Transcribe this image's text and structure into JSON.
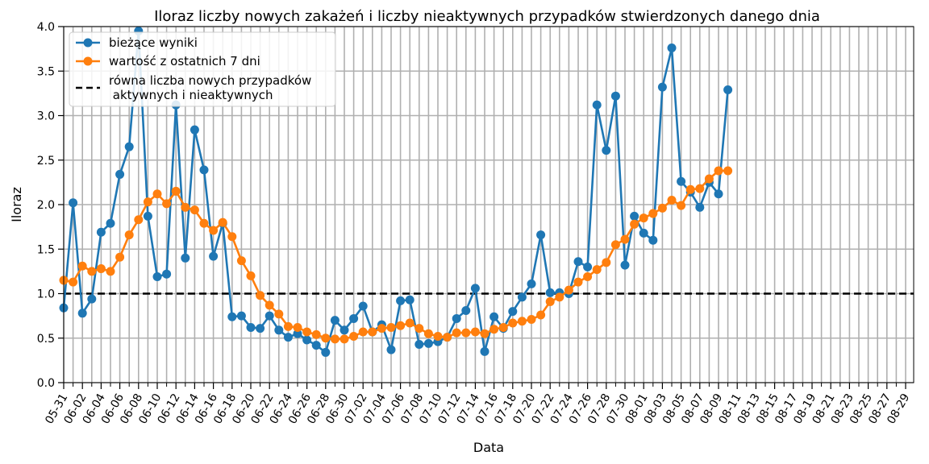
{
  "chart_data": {
    "type": "line",
    "title": "Iloraz liczby nowych zakażeń i liczby nieaktywnych przypadków stwierdzonych danego dnia",
    "xlabel": "Data",
    "ylabel": "Iloraz",
    "ylim": [
      0,
      4
    ],
    "y_ticks": [
      "0.0",
      "0.5",
      "1.0",
      "1.5",
      "2.0",
      "2.5",
      "3.0",
      "3.5",
      "4.0"
    ],
    "x_ticks": [
      "05-31",
      "06-02",
      "06-04",
      "06-06",
      "06-08",
      "06-10",
      "06-12",
      "06-14",
      "06-16",
      "06-18",
      "06-20",
      "06-22",
      "06-24",
      "06-26",
      "06-28",
      "06-30",
      "07-02",
      "07-04",
      "07-06",
      "07-08",
      "07-10",
      "07-12",
      "07-14",
      "07-16",
      "07-18",
      "07-20",
      "07-22",
      "07-24",
      "07-26",
      "07-28",
      "07-30",
      "08-01",
      "08-03",
      "08-05",
      "08-07",
      "08-09",
      "08-11",
      "08-13",
      "08-15",
      "08-17",
      "08-19",
      "08-21",
      "08-23",
      "08-25",
      "08-27",
      "08-29"
    ],
    "grid": true,
    "legend_position": "top-left",
    "colors": {
      "current": "#1f77b4",
      "avg7": "#ff7f0e",
      "reference": "#000000"
    },
    "series": [
      {
        "name": "bieżące wyniki",
        "values": [
          0.84,
          2.02,
          0.78,
          0.94,
          1.69,
          1.79,
          2.34,
          2.65,
          3.95,
          1.87,
          1.19,
          1.22,
          3.12,
          1.4,
          2.84,
          2.39,
          1.42,
          1.79,
          0.74,
          0.75,
          0.62,
          0.61,
          0.75,
          0.59,
          0.51,
          0.55,
          0.48,
          0.42,
          0.34,
          0.7,
          0.59,
          0.72,
          0.86,
          0.57,
          0.65,
          0.37,
          0.92,
          0.93,
          0.43,
          0.44,
          0.46,
          0.51,
          0.72,
          0.81,
          1.06,
          0.35,
          0.74,
          0.61,
          0.8,
          0.96,
          1.11,
          1.66,
          1.01,
          1.01,
          1.0,
          1.36,
          1.3,
          3.12,
          2.61,
          3.22,
          1.32,
          1.87,
          1.68,
          1.6,
          3.32,
          3.76,
          2.26,
          2.14,
          1.97,
          2.25,
          2.12,
          3.29
        ]
      },
      {
        "name": "wartość z ostatnich 7 dni",
        "values": [
          1.15,
          1.13,
          1.31,
          1.25,
          1.28,
          1.25,
          1.41,
          1.66,
          1.83,
          2.03,
          2.12,
          2.01,
          2.15,
          1.97,
          1.94,
          1.79,
          1.71,
          1.8,
          1.64,
          1.37,
          1.2,
          0.98,
          0.87,
          0.77,
          0.63,
          0.62,
          0.57,
          0.54,
          0.5,
          0.49,
          0.49,
          0.52,
          0.57,
          0.57,
          0.61,
          0.62,
          0.64,
          0.67,
          0.61,
          0.55,
          0.52,
          0.51,
          0.56,
          0.56,
          0.57,
          0.55,
          0.6,
          0.62,
          0.67,
          0.69,
          0.71,
          0.76,
          0.91,
          0.96,
          1.04,
          1.13,
          1.19,
          1.27,
          1.35,
          1.55,
          1.61,
          1.78,
          1.85,
          1.9,
          1.96,
          2.05,
          1.99,
          2.17,
          2.18,
          2.29,
          2.38,
          2.38
        ]
      },
      {
        "name": "równa liczba nowych przypadków\n aktywnych i nieaktywnych",
        "value": 1.0
      }
    ]
  }
}
